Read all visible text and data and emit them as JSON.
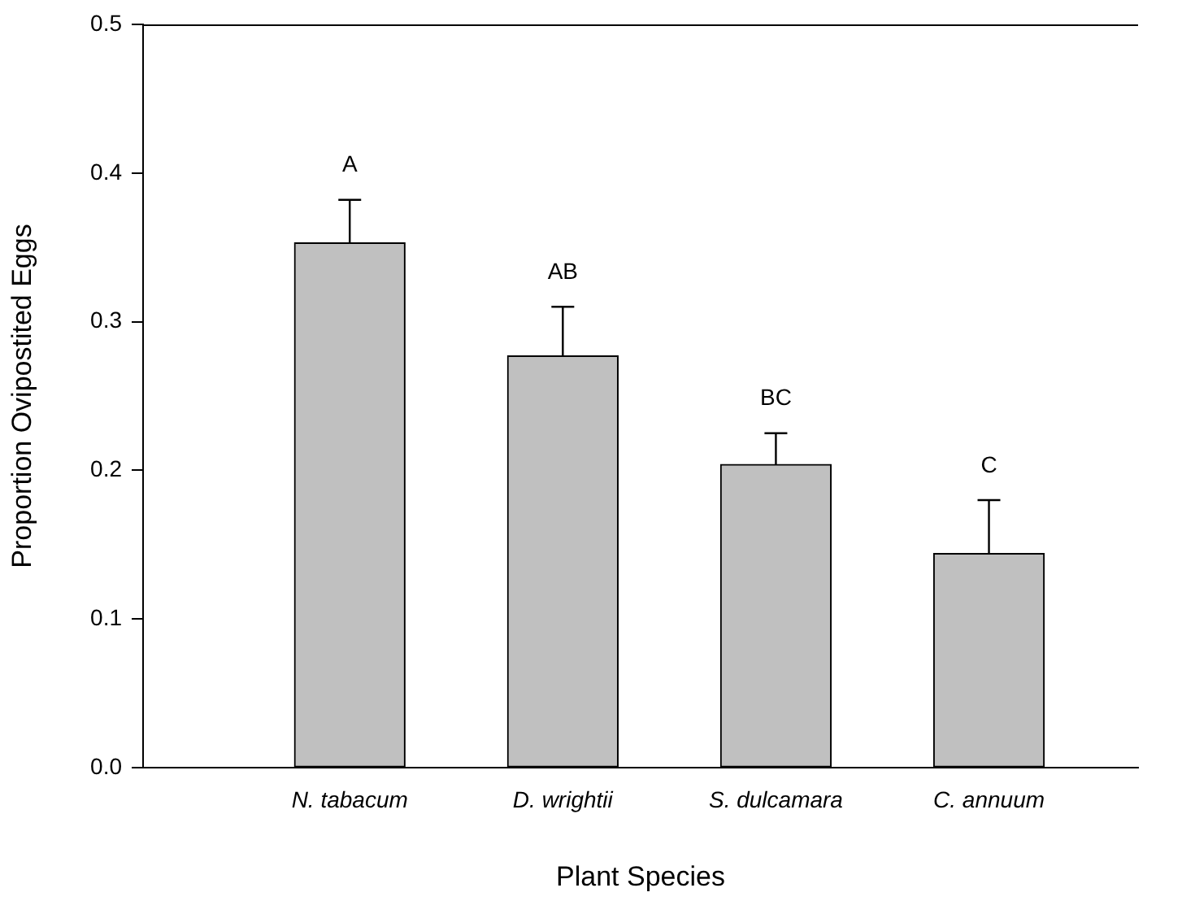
{
  "chart_data": {
    "type": "bar",
    "xlabel": "Plant Species",
    "ylabel": "Proportion Ovipostited Eggs",
    "categories": [
      "N. tabacum",
      "D. wrightii",
      "S. dulcamara",
      "C. annuum"
    ],
    "values": [
      0.353,
      0.277,
      0.204,
      0.144
    ],
    "errors": [
      [
        0.353,
        0.382
      ],
      [
        0.277,
        0.31
      ],
      [
        0.204,
        0.225
      ],
      [
        0.144,
        0.18
      ]
    ],
    "color": "#c0c0c0",
    "ylim": [
      0,
      0.5
    ],
    "yticks": [
      {
        "value": 0,
        "label": "0.0"
      },
      0.1,
      0.2,
      0.3,
      0.4,
      0.5
    ],
    "grid": false,
    "legend": false,
    "annotations": [
      {
        "text": "A",
        "x": "N. tabacum",
        "y": 0.382
      },
      {
        "text": "AB",
        "x": "D. wrightii",
        "y": 0.31
      },
      {
        "text": "BC",
        "x": "S. dulcamara",
        "y": 0.225
      },
      {
        "text": "C",
        "x": "C. annuum",
        "y": 0.18
      }
    ]
  }
}
